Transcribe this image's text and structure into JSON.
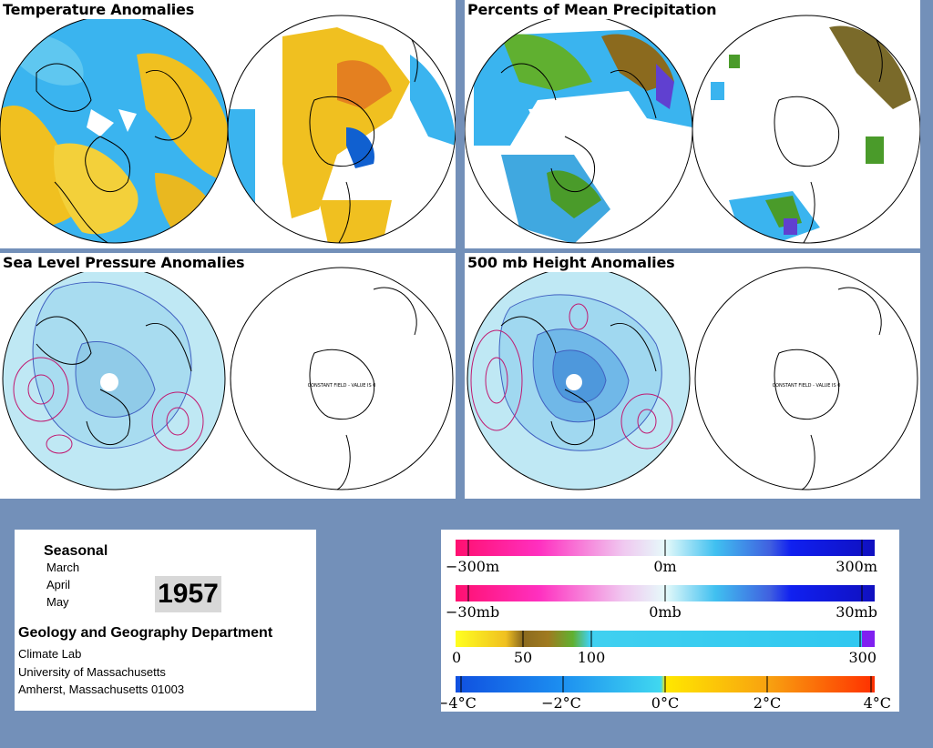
{
  "panels": {
    "temperature": {
      "title": "Temperature Anomalies"
    },
    "precipitation": {
      "title": "Percents of Mean Precipitation"
    },
    "slp": {
      "title": "Sea Level Pressure Anomalies",
      "south_note": "CONSTANT FIELD - VALUE IS 0"
    },
    "height500": {
      "title": "500 mb Height Anomalies",
      "south_note": "CONSTANT FIELD - VALUE IS 0"
    }
  },
  "info": {
    "seasonal_label": "Seasonal",
    "months": [
      "March",
      "April",
      "May"
    ],
    "year": "1957",
    "department": "Geology and Geography Department",
    "address_lines": [
      "Climate Lab",
      "University of Massachusetts",
      "Amherst, Massachusetts 01003"
    ]
  },
  "legend": {
    "height_scale": {
      "labels": [
        "−300m",
        "0m",
        "300m"
      ]
    },
    "pressure_scale": {
      "labels": [
        "−30mb",
        "0mb",
        "30mb"
      ]
    },
    "precip_scale": {
      "labels": [
        "0",
        "50",
        "100",
        "300"
      ]
    },
    "temp_scale": {
      "labels": [
        "−4°C",
        "−2°C",
        "0°C",
        "2°C",
        "4°C"
      ]
    }
  },
  "colors": {
    "background": "#7390b9",
    "anomaly_cold": "#19a7ef",
    "anomaly_warm": "#f0c020",
    "contour_negative": "#2040a0",
    "contour_positive": "#c01870"
  }
}
